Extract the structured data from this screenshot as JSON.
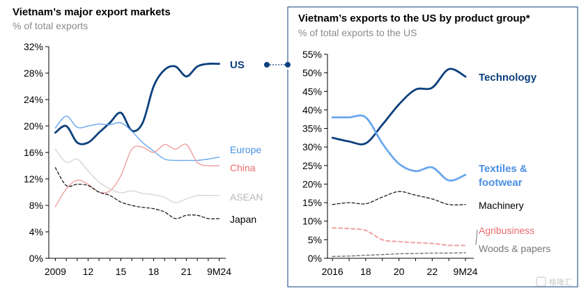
{
  "chart_data": [
    {
      "type": "line",
      "title": "Vietnam’s major export markets",
      "subtitle": "% of total exports",
      "x": [
        2009,
        2010,
        2011,
        2012,
        2013,
        2014,
        2015,
        2016,
        2017,
        2018,
        2019,
        2020,
        2021,
        2022,
        2023,
        2024
      ],
      "xticklabels": [
        "2009",
        "12",
        "15",
        "18",
        "21",
        "9M24"
      ],
      "xticks": [
        2009,
        2012,
        2015,
        2018,
        2021,
        2024
      ],
      "yticklabels": [
        "0%",
        "4%",
        "8%",
        "12%",
        "16%",
        "20%",
        "24%",
        "28%",
        "32%"
      ],
      "ylim": [
        0,
        32
      ],
      "series": [
        {
          "name": "US",
          "color": "#0b3f7d",
          "style": "solid-bold",
          "values": [
            19.0,
            20.0,
            17.5,
            17.5,
            19.0,
            20.5,
            22.0,
            19.3,
            20.5,
            26.0,
            28.5,
            29.0,
            27.5,
            29.0,
            29.4,
            29.4
          ]
        },
        {
          "name": "Europe",
          "color": "#6aa7ee",
          "style": "solid-thin",
          "values": [
            19.7,
            21.5,
            19.8,
            20.0,
            20.3,
            20.2,
            20.5,
            19.2,
            17.5,
            16.2,
            15.0,
            14.8,
            14.8,
            14.8,
            15.0,
            15.3
          ]
        },
        {
          "name": "China",
          "color": "#f0a0a0",
          "style": "solid-thin",
          "values": [
            7.8,
            10.5,
            11.8,
            11.2,
            10.0,
            10.2,
            12.5,
            16.5,
            16.8,
            16.0,
            17.2,
            16.5,
            17.2,
            14.5,
            14.0,
            14.0
          ]
        },
        {
          "name": "ASEAN",
          "color": "#d6d6d6",
          "style": "solid-thin",
          "values": [
            16.5,
            14.5,
            15.0,
            13.2,
            11.5,
            10.5,
            9.9,
            10.2,
            9.8,
            9.6,
            9.2,
            8.4,
            9.0,
            9.5,
            9.5,
            9.5
          ]
        },
        {
          "name": "Japan",
          "color": "#1a1a1a",
          "style": "dashed",
          "values": [
            13.7,
            11.0,
            11.2,
            11.0,
            10.0,
            9.5,
            8.5,
            8.0,
            7.7,
            7.5,
            7.0,
            6.0,
            6.5,
            6.5,
            6.0,
            6.0
          ]
        }
      ]
    },
    {
      "type": "line",
      "title": "Vietnam’s exports to the US by product group*",
      "subtitle": "% of total exports to the US",
      "x": [
        2016,
        2017,
        2018,
        2019,
        2020,
        2021,
        2022,
        2023,
        2024
      ],
      "xticklabels": [
        "2016",
        "18",
        "20",
        "22",
        "9M24"
      ],
      "xticks": [
        2016,
        2018,
        2020,
        2022,
        2024
      ],
      "yticklabels": [
        "0%",
        "5%",
        "10%",
        "15%",
        "20%",
        "25%",
        "30%",
        "35%",
        "40%",
        "45%",
        "50%",
        "55%"
      ],
      "ylim": [
        0,
        55
      ],
      "series": [
        {
          "name": "Technology",
          "color": "#0b3f7d",
          "style": "solid-bold",
          "values": [
            32.5,
            31.5,
            31.0,
            36.0,
            41.5,
            45.5,
            46.0,
            51.0,
            49.0
          ]
        },
        {
          "name": "Textiles & footwear",
          "color": "#6aa7ee",
          "style": "solid-bold",
          "values": [
            38.0,
            38.0,
            38.0,
            31.0,
            25.5,
            23.5,
            24.5,
            21.0,
            22.5
          ]
        },
        {
          "name": "Machinery",
          "color": "#1a1a1a",
          "style": "dashed",
          "values": [
            14.5,
            15.0,
            14.7,
            16.5,
            18.0,
            17.0,
            16.0,
            14.5,
            14.5
          ]
        },
        {
          "name": "Agribusiness",
          "color": "#f0a0a0",
          "style": "dashed-bold",
          "values": [
            8.2,
            8.0,
            7.5,
            5.0,
            4.5,
            4.2,
            4.0,
            3.5,
            3.5
          ]
        },
        {
          "name": "Woods & papers",
          "color": "#666666",
          "style": "dashed",
          "values": [
            0.5,
            0.6,
            0.8,
            1.0,
            1.2,
            1.3,
            1.4,
            1.4,
            1.5
          ]
        }
      ]
    }
  ],
  "labels": {
    "left": {
      "us": "US",
      "europe": "Europe",
      "china": "China",
      "asean": "ASEAN",
      "japan": "Japan"
    },
    "right": {
      "technology": "Technology",
      "textiles_line1": "Textiles &",
      "textiles_line2": "footwear",
      "machinery": "Machinery",
      "agribusiness": "Agribusiness",
      "woods": "Woods & papers"
    }
  },
  "watermark": "格隆汇"
}
